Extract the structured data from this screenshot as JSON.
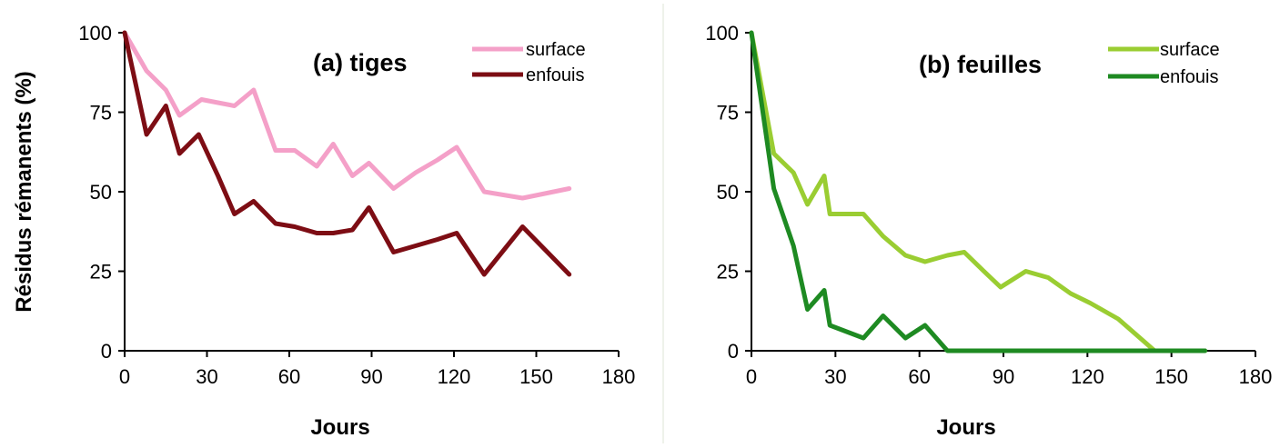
{
  "chart_data": [
    {
      "type": "line",
      "title": "(a) tiges",
      "xlabel": "Jours",
      "ylabel": "Résidus rémanents (%)",
      "xlim": [
        0,
        180
      ],
      "ylim": [
        0,
        100
      ],
      "xticks": [
        0,
        30,
        60,
        90,
        120,
        150,
        180
      ],
      "yticks": [
        0,
        25,
        50,
        75,
        100
      ],
      "grid": false,
      "legend": "top-right",
      "series": [
        {
          "name": "surface",
          "color": "#f4a0c8",
          "points": [
            [
              0,
              100
            ],
            [
              8,
              88
            ],
            [
              15,
              82
            ],
            [
              20,
              74
            ],
            [
              28,
              79
            ],
            [
              34,
              78
            ],
            [
              40,
              77
            ],
            [
              47,
              82
            ],
            [
              55,
              63
            ],
            [
              62,
              63
            ],
            [
              70,
              58
            ],
            [
              76,
              65
            ],
            [
              83,
              55
            ],
            [
              89,
              59
            ],
            [
              98,
              51
            ],
            [
              106,
              56
            ],
            [
              114,
              60
            ],
            [
              121,
              64
            ],
            [
              131,
              50
            ],
            [
              145,
              48
            ],
            [
              162,
              51
            ]
          ]
        },
        {
          "name": "enfouis",
          "color": "#7d0d14",
          "points": [
            [
              0,
              100
            ],
            [
              8,
              68
            ],
            [
              15,
              77
            ],
            [
              20,
              62
            ],
            [
              27,
              68
            ],
            [
              34,
              55
            ],
            [
              40,
              43
            ],
            [
              47,
              47
            ],
            [
              55,
              40
            ],
            [
              62,
              39
            ],
            [
              70,
              37
            ],
            [
              76,
              37
            ],
            [
              83,
              38
            ],
            [
              89,
              45
            ],
            [
              98,
              31
            ],
            [
              106,
              33
            ],
            [
              114,
              35
            ],
            [
              121,
              37
            ],
            [
              131,
              24
            ],
            [
              145,
              39
            ],
            [
              162,
              24
            ]
          ]
        }
      ]
    },
    {
      "type": "line",
      "title": "(b) feuilles",
      "xlabel": "Jours",
      "ylabel": "",
      "xlim": [
        0,
        180
      ],
      "ylim": [
        0,
        100
      ],
      "xticks": [
        0,
        30,
        60,
        90,
        120,
        150,
        180
      ],
      "yticks": [
        0,
        25,
        50,
        75,
        100
      ],
      "grid": false,
      "legend": "top-right",
      "series": [
        {
          "name": "surface",
          "color": "#9acd32",
          "points": [
            [
              0,
              100
            ],
            [
              8,
              62
            ],
            [
              15,
              56
            ],
            [
              20,
              46
            ],
            [
              26,
              55
            ],
            [
              28,
              43
            ],
            [
              34,
              43
            ],
            [
              40,
              43
            ],
            [
              47,
              36
            ],
            [
              55,
              30
            ],
            [
              62,
              28
            ],
            [
              70,
              30
            ],
            [
              76,
              31
            ],
            [
              83,
              25
            ],
            [
              89,
              20
            ],
            [
              98,
              25
            ],
            [
              106,
              23
            ],
            [
              114,
              18
            ],
            [
              121,
              15
            ],
            [
              131,
              10
            ],
            [
              144,
              0
            ],
            [
              162,
              0
            ]
          ]
        },
        {
          "name": "enfouis",
          "color": "#1e8a22",
          "points": [
            [
              0,
              100
            ],
            [
              8,
              51
            ],
            [
              15,
              33
            ],
            [
              20,
              13
            ],
            [
              26,
              19
            ],
            [
              28,
              8
            ],
            [
              34,
              6
            ],
            [
              40,
              4
            ],
            [
              47,
              11
            ],
            [
              55,
              4
            ],
            [
              62,
              8
            ],
            [
              70,
              0
            ],
            [
              80,
              0
            ],
            [
              90,
              0
            ],
            [
              100,
              0
            ],
            [
              120,
              0
            ],
            [
              140,
              0
            ],
            [
              162,
              0
            ]
          ]
        }
      ]
    }
  ]
}
